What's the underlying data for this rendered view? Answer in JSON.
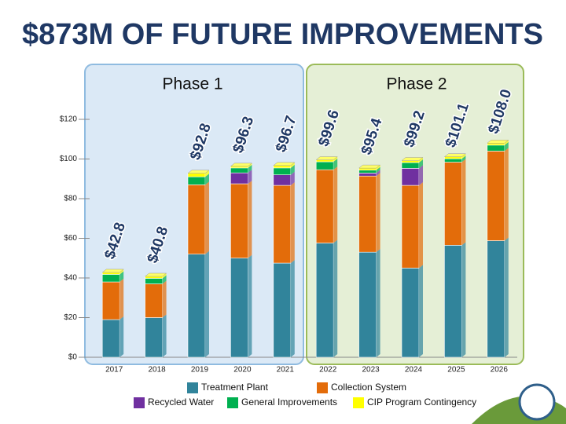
{
  "chart_data": {
    "type": "stacked-bar",
    "title": "$873M OF FUTURE IMPROVEMENTS",
    "phases": [
      "Phase 1",
      "Phase 2"
    ],
    "categories": [
      "2017",
      "2018",
      "2019",
      "2020",
      "2021",
      "2022",
      "2023",
      "2024",
      "2025",
      "2026"
    ],
    "series": [
      {
        "name": "Treatment Plant",
        "color": "#31849b",
        "values": [
          19,
          20,
          52,
          50,
          47.5,
          57.6,
          53,
          45,
          56.5,
          58.8
        ]
      },
      {
        "name": "Collection System",
        "color": "#e36c0a",
        "values": [
          19,
          17,
          35,
          37.5,
          39.2,
          37,
          38.4,
          41.7,
          41.9,
          45.2
        ]
      },
      {
        "name": "Recycled Water",
        "color": "#7030a0",
        "values": [
          0,
          0,
          0,
          5.5,
          5.3,
          0,
          1.5,
          8.6,
          0,
          0
        ]
      },
      {
        "name": "General Improvements",
        "color": "#00b050",
        "values": [
          3.8,
          2.8,
          4,
          2.5,
          3.5,
          4,
          1.5,
          2.9,
          1.7,
          3
        ]
      },
      {
        "name": "CIP Program Contingency",
        "color": "#ffff00",
        "values": [
          1,
          1,
          1.8,
          0.8,
          1.2,
          1,
          1,
          1,
          1,
          1
        ]
      }
    ],
    "totals": {
      "values": [
        42.8,
        40.8,
        92.8,
        96.3,
        96.7,
        99.6,
        95.4,
        99.2,
        101.1,
        108.0
      ],
      "value_labels": [
        "$42.8",
        "$40.8",
        "$92.8",
        "$96.3",
        "$96.7",
        "$99.6",
        "$95.4",
        "$99.2",
        "$101.1",
        "$108.0"
      ]
    },
    "ylim": [
      0,
      120
    ],
    "yticks": [
      {
        "value": 0,
        "label": "$0"
      },
      {
        "value": 20,
        "label": "$20"
      },
      {
        "value": 40,
        "label": "$40"
      },
      {
        "value": 60,
        "label": "$60"
      },
      {
        "value": 80,
        "label": "$80"
      },
      {
        "value": 100,
        "label": "$100"
      },
      {
        "value": 120,
        "label": "$120"
      }
    ],
    "grid": true
  }
}
